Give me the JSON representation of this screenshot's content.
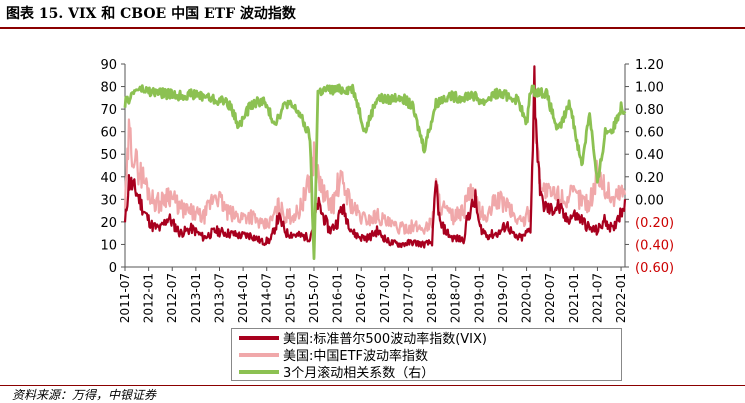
{
  "title": "图表 15. VIX 和 CBOE 中国 ETF 波动指数",
  "source": "资料来源：万得，中银证券",
  "colors": {
    "vix": "#a8001e",
    "china_etf": "#f0a8aa",
    "corr": "#8cc152",
    "rule": "#8b0000"
  },
  "chart_data": {
    "type": "line",
    "x_tick_labels": [
      "2011-07",
      "2012-01",
      "2012-07",
      "2013-01",
      "2013-07",
      "2014-01",
      "2014-07",
      "2015-01",
      "2015-07",
      "2016-01",
      "2016-07",
      "2017-01",
      "2017-07",
      "2018-01",
      "2018-07",
      "2019-01",
      "2019-07",
      "2020-01",
      "2020-07",
      "2021-01",
      "2021-07",
      "2022-01"
    ],
    "left_axis": {
      "ylim": [
        0,
        90
      ],
      "ticks": [
        "0",
        "10",
        "20",
        "30",
        "40",
        "50",
        "60",
        "70",
        "80",
        "90"
      ]
    },
    "right_axis": {
      "ylim": [
        -0.6,
        1.2
      ],
      "ticks": [
        "(0.60)",
        "(0.40)",
        "(0.20)",
        "0.00",
        "0.20",
        "0.40",
        "0.60",
        "0.80",
        "1.00",
        "1.20"
      ],
      "negative_color": "#cc0000"
    },
    "series": [
      {
        "name": "美国:标准普尔500波动率指数(VIX)",
        "axis": "left",
        "color": "#a8001e",
        "x": [
          "2011-07",
          "2011-08",
          "2011-10",
          "2011-12",
          "2012-02",
          "2012-04",
          "2012-06",
          "2012-09",
          "2012-12",
          "2013-03",
          "2013-06",
          "2013-09",
          "2013-12",
          "2014-03",
          "2014-06",
          "2014-08",
          "2014-10",
          "2014-12",
          "2015-03",
          "2015-06",
          "2015-08",
          "2015-09",
          "2015-11",
          "2016-01",
          "2016-02",
          "2016-05",
          "2016-07",
          "2016-09",
          "2016-11",
          "2017-02",
          "2017-05",
          "2017-08",
          "2017-11",
          "2018-01",
          "2018-02",
          "2018-03",
          "2018-06",
          "2018-09",
          "2018-10",
          "2018-12",
          "2019-01",
          "2019-03",
          "2019-06",
          "2019-08",
          "2019-10",
          "2019-12",
          "2020-02",
          "2020-03",
          "2020-04",
          "2020-05",
          "2020-07",
          "2020-09",
          "2020-11",
          "2021-01",
          "2021-03",
          "2021-05",
          "2021-07",
          "2021-09",
          "2021-11",
          "2021-12",
          "2022-01",
          "2022-02"
        ],
        "values": [
          19,
          38,
          33,
          24,
          18,
          17,
          22,
          15,
          17,
          13,
          16,
          15,
          14,
          14,
          11,
          12,
          22,
          15,
          14,
          13,
          28,
          24,
          16,
          20,
          27,
          15,
          13,
          13,
          16,
          11,
          10,
          11,
          10,
          11,
          37,
          19,
          13,
          12,
          22,
          30,
          18,
          14,
          15,
          19,
          13,
          13,
          17,
          83,
          42,
          28,
          25,
          27,
          21,
          23,
          21,
          17,
          16,
          21,
          16,
          22,
          24,
          30
        ]
      },
      {
        "name": "美国:中国ETF波动率指数",
        "axis": "left",
        "color": "#f0a8aa",
        "x": [
          "2011-07",
          "2011-08",
          "2011-10",
          "2011-12",
          "2012-02",
          "2012-04",
          "2012-06",
          "2012-09",
          "2012-12",
          "2013-03",
          "2013-06",
          "2013-09",
          "2013-12",
          "2014-03",
          "2014-06",
          "2014-08",
          "2014-10",
          "2014-12",
          "2015-03",
          "2015-06",
          "2015-07",
          "2015-08",
          "2015-10",
          "2015-12",
          "2016-01",
          "2016-02",
          "2016-05",
          "2016-07",
          "2016-09",
          "2016-11",
          "2017-02",
          "2017-05",
          "2017-08",
          "2017-11",
          "2018-01",
          "2018-02",
          "2018-03",
          "2018-06",
          "2018-09",
          "2018-10",
          "2018-12",
          "2019-01",
          "2019-03",
          "2019-05",
          "2019-08",
          "2019-10",
          "2019-12",
          "2020-02",
          "2020-03",
          "2020-04",
          "2020-05",
          "2020-07",
          "2020-09",
          "2020-11",
          "2021-01",
          "2021-03",
          "2021-05",
          "2021-07",
          "2021-09",
          "2021-11",
          "2021-12",
          "2022-01",
          "2022-02"
        ],
        "values": [
          27,
          58,
          45,
          38,
          30,
          28,
          33,
          26,
          24,
          22,
          33,
          24,
          22,
          23,
          18,
          20,
          27,
          22,
          24,
          38,
          50,
          40,
          30,
          28,
          36,
          38,
          26,
          22,
          21,
          23,
          19,
          17,
          18,
          17,
          20,
          36,
          28,
          22,
          24,
          33,
          30,
          25,
          21,
          30,
          28,
          22,
          20,
          25,
          70,
          46,
          35,
          32,
          32,
          30,
          32,
          30,
          28,
          42,
          35,
          30,
          32,
          34,
          32
        ]
      },
      {
        "name": "3个月滚动相关系数（右）",
        "axis": "right",
        "color": "#8cc152",
        "x": [
          "2011-07",
          "2011-10",
          "2012-02",
          "2012-05",
          "2012-08",
          "2012-12",
          "2013-03",
          "2013-06",
          "2013-09",
          "2013-12",
          "2014-03",
          "2014-06",
          "2014-09",
          "2014-12",
          "2015-03",
          "2015-06",
          "2015-07",
          "2015-08",
          "2015-10",
          "2016-01",
          "2016-05",
          "2016-08",
          "2016-11",
          "2017-02",
          "2017-05",
          "2017-08",
          "2017-11",
          "2018-02",
          "2018-05",
          "2018-08",
          "2018-11",
          "2019-02",
          "2019-05",
          "2019-08",
          "2019-11",
          "2020-01",
          "2020-02",
          "2020-03",
          "2020-06",
          "2020-09",
          "2020-12",
          "2021-03",
          "2021-05",
          "2021-07",
          "2021-09",
          "2021-11",
          "2022-01",
          "2022-02"
        ],
        "values": [
          0.85,
          0.98,
          0.95,
          0.94,
          0.92,
          0.93,
          0.92,
          0.88,
          0.87,
          0.65,
          0.84,
          0.88,
          0.68,
          0.86,
          0.78,
          0.55,
          -0.55,
          0.95,
          0.97,
          0.97,
          0.98,
          0.6,
          0.9,
          0.88,
          0.92,
          0.82,
          0.45,
          0.85,
          0.92,
          0.9,
          0.93,
          0.86,
          0.94,
          0.92,
          0.88,
          0.65,
          0.98,
          0.96,
          0.94,
          0.6,
          0.85,
          0.3,
          0.78,
          0.12,
          0.6,
          0.62,
          0.82,
          0.78
        ]
      }
    ],
    "legend_position": "bottom",
    "grid": false
  },
  "legend": [
    {
      "label": "美国:标准普尔500波动率指数(VIX)",
      "color": "#a8001e"
    },
    {
      "label": "美国:中国ETF波动率指数",
      "color": "#f0a8aa"
    },
    {
      "label": "3个月滚动相关系数（右）",
      "color": "#8cc152"
    }
  ]
}
